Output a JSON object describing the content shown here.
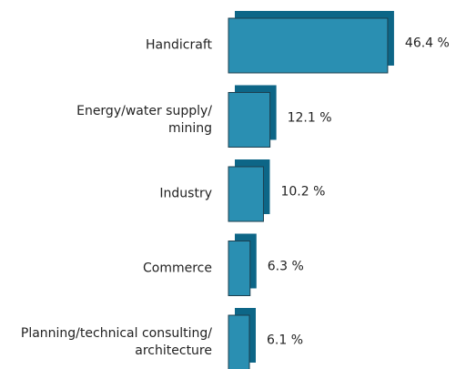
{
  "chart_data": {
    "type": "bar",
    "orientation": "horizontal",
    "categories": [
      "Handicraft",
      "Energy/water supply/\nmining",
      "Industry",
      "Commerce",
      "Planning/technical consulting/\narchitecture"
    ],
    "values": [
      46.4,
      12.1,
      10.2,
      6.3,
      6.1
    ],
    "value_labels": [
      "46.4 %",
      "12.1 %",
      "10.2 %",
      "6.3 %",
      "6.1 %"
    ],
    "color": "#2a8fb2",
    "shadow_color": "#0d6687"
  }
}
